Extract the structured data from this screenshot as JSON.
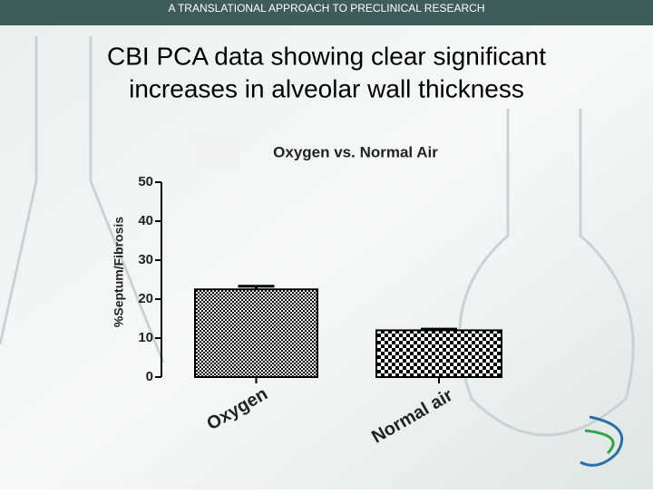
{
  "header": {
    "title": "A TRANSLATIONAL APPROACH TO PRECLINICAL RESEARCH"
  },
  "slide": {
    "title_lines": [
      "CBI PCA data showing clear significant",
      "increases in alveolar wall thickness"
    ]
  },
  "chart_data": {
    "type": "bar",
    "title": "Oxygen vs. Normal Air",
    "y_label": "%Septum/Fibrosis",
    "categories": [
      "Oxygen",
      "Normal air"
    ],
    "values": [
      22.5,
      12
    ],
    "errors": [
      0.8,
      0.3
    ],
    "ylim": [
      0,
      50
    ],
    "yticks": [
      0,
      10,
      20,
      30,
      40,
      50
    ]
  }
}
